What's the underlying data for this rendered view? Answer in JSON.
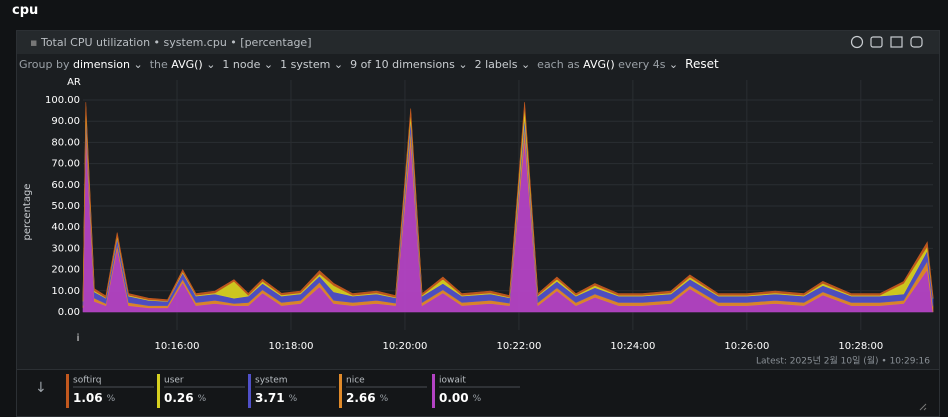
{
  "section_title": "cpu",
  "panel": {
    "title": "Total CPU utilization • system.cpu • [percentage]"
  },
  "toolbar": {
    "group_by_label": "Group by",
    "group_by_value": "dimension",
    "aggregation_prefix": "the",
    "aggregation": "AVG()",
    "nodes": "1 node",
    "instances": "1 system",
    "dimensions": "9 of 10 dimensions",
    "labels": "2 labels",
    "time_aggregation_prefix": "each as",
    "time_aggregation": "AVG()",
    "time_aggregation_suffix": "every 4s",
    "reset": "Reset"
  },
  "chart_data": {
    "type": "stacked-area",
    "y_label": "percentage",
    "top_label": "AR",
    "bottom_label": "i",
    "unit": "%",
    "latest": "Latest: 2025년 2월 10일 (월) • 10:29:16",
    "xlim": [
      "10:14:21",
      "10:29:16"
    ],
    "xticks": [
      "10:16:00",
      "10:18:00",
      "10:20:00",
      "10:22:00",
      "10:24:00",
      "10:26:00",
      "10:28:00"
    ],
    "ylim": [
      0,
      100
    ],
    "yticks": [
      {
        "value": 0,
        "label": "0.00"
      },
      {
        "value": 10,
        "label": "10.00"
      },
      {
        "value": 20,
        "label": "20.00"
      },
      {
        "value": 30,
        "label": "30.00"
      },
      {
        "value": 40,
        "label": "40.00"
      },
      {
        "value": 50,
        "label": "50.00"
      },
      {
        "value": 60,
        "label": "60.00"
      },
      {
        "value": 70,
        "label": "70.00"
      },
      {
        "value": 80,
        "label": "80.00"
      },
      {
        "value": 90,
        "label": "90.00"
      },
      {
        "value": 100,
        "label": "100.00"
      }
    ],
    "grid": true,
    "x": [
      "10:14:21",
      "10:14:24",
      "10:14:33",
      "10:14:45",
      "10:14:57",
      "10:15:09",
      "10:15:30",
      "10:15:50",
      "10:16:06",
      "10:16:20",
      "10:16:40",
      "10:17:00",
      "10:17:15",
      "10:17:30",
      "10:17:50",
      "10:18:10",
      "10:18:30",
      "10:18:45",
      "10:19:05",
      "10:19:30",
      "10:19:50",
      "10:20:06",
      "10:20:18",
      "10:20:40",
      "10:21:00",
      "10:21:30",
      "10:21:50",
      "10:22:06",
      "10:22:20",
      "10:22:40",
      "10:23:00",
      "10:23:20",
      "10:23:45",
      "10:24:10",
      "10:24:40",
      "10:25:00",
      "10:25:30",
      "10:26:00",
      "10:26:30",
      "10:27:00",
      "10:27:20",
      "10:27:50",
      "10:28:20",
      "10:28:45",
      "10:29:10",
      "10:29:16"
    ],
    "series": [
      {
        "name": "softirq",
        "color": "#c2581e",
        "latest": "1.06",
        "values": [
          0.7,
          2,
          1,
          0.8,
          1.5,
          0.8,
          0.7,
          0.6,
          1,
          0.8,
          0.9,
          0.8,
          0.9,
          1,
          0.8,
          0.9,
          1.5,
          1,
          0.8,
          0.9,
          0.8,
          2,
          0.8,
          1,
          0.8,
          0.9,
          0.8,
          2,
          0.8,
          1,
          0.8,
          1,
          0.8,
          0.8,
          0.9,
          1,
          0.8,
          0.8,
          0.9,
          0.8,
          1,
          0.8,
          0.8,
          0.9,
          2,
          1.06
        ]
      },
      {
        "name": "user",
        "color": "#d6d020",
        "latest": "0.26",
        "values": [
          0.3,
          3,
          0.5,
          0.3,
          1,
          0.4,
          0.3,
          0.2,
          0.5,
          0.4,
          0.5,
          8,
          0.4,
          1,
          0.5,
          0.5,
          1,
          3,
          0.4,
          0.5,
          0.3,
          3,
          0.4,
          2,
          0.4,
          0.5,
          0.3,
          5,
          0.4,
          1,
          0.4,
          1,
          0.4,
          0.4,
          0.5,
          1,
          0.4,
          0.4,
          0.5,
          0.4,
          1,
          0.4,
          0.4,
          5,
          2,
          0.26
        ]
      },
      {
        "name": "system",
        "color": "#5050c8",
        "latest": "3.71",
        "values": [
          2,
          4,
          3,
          2.5,
          3,
          3,
          2.5,
          2,
          3,
          3,
          3,
          2.5,
          3,
          3,
          3,
          3,
          3,
          4,
          3,
          3,
          2.5,
          5,
          3,
          3,
          3,
          3,
          2.5,
          4,
          3,
          3,
          3,
          3,
          3,
          3,
          3,
          3,
          3,
          3,
          3,
          3,
          3,
          3,
          3,
          3,
          5,
          3.71
        ]
      },
      {
        "name": "nice",
        "color": "#e08a2a",
        "latest": "2.66",
        "values": [
          1,
          5,
          1.5,
          1,
          2,
          1.5,
          1,
          1,
          1.5,
          1.5,
          1.5,
          1,
          1.5,
          1.5,
          1.5,
          1.5,
          2,
          1.5,
          1.5,
          1.5,
          1.2,
          6,
          1.5,
          1.5,
          1.5,
          1.5,
          1.2,
          6,
          1.5,
          1.5,
          1.5,
          1.5,
          1.5,
          1.5,
          1.5,
          1.5,
          1.5,
          1.5,
          1.5,
          1.5,
          1.5,
          1.5,
          1.5,
          1.5,
          4,
          2.66
        ]
      },
      {
        "name": "iowait",
        "color": "#b443c4",
        "latest": "0.00",
        "values": [
          2,
          85,
          5,
          3,
          30,
          3,
          2,
          2,
          14,
          3,
          4,
          3,
          3,
          9,
          3,
          4,
          12,
          4,
          3,
          4,
          3,
          80,
          3,
          9,
          3,
          4,
          3,
          82,
          3,
          10,
          3,
          7,
          3,
          3,
          4,
          11,
          3,
          3,
          4,
          3,
          8,
          3,
          3,
          4,
          20,
          0
        ]
      }
    ]
  }
}
